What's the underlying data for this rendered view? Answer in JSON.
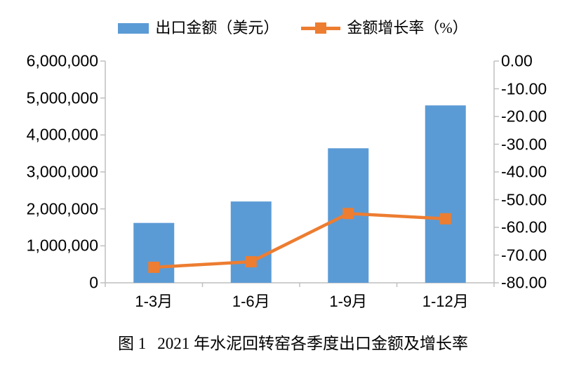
{
  "legend": {
    "bar_series_label": "出口金额（美元）",
    "line_series_label": "金额增长率（%）"
  },
  "caption": {
    "prefix": "图 1",
    "text": "2021 年水泥回转窑各季度出口金额及增长率"
  },
  "colors": {
    "bar": "#5B9BD5",
    "line": "#ED7D31",
    "axis": "#BFBFBF",
    "text": "#000000"
  },
  "chart_data": {
    "type": "bar",
    "title": "图 1  2021 年水泥回转窑各季度出口金额及增长率",
    "categories": [
      "1-3月",
      "1-6月",
      "1-9月",
      "1-12月"
    ],
    "series": [
      {
        "name": "出口金额（美元）",
        "type": "bar",
        "axis": "left",
        "color": "#5B9BD5",
        "values": [
          1620000,
          2200000,
          3640000,
          4800000
        ]
      },
      {
        "name": "金额增长率（%）",
        "type": "line",
        "axis": "right",
        "color": "#ED7D31",
        "values": [
          -74.4,
          -72.4,
          -55.0,
          -56.9
        ]
      }
    ],
    "left_axis": {
      "min": 0,
      "max": 6000000,
      "tick_labels": [
        "6,000,000",
        "5,000,000",
        "4,000,000",
        "3,000,000",
        "2,000,000",
        "1,000,000",
        "0"
      ]
    },
    "right_axis": {
      "min": -80,
      "max": 0,
      "tick_labels": [
        "0.00",
        "-10.00",
        "-20.00",
        "-30.00",
        "-40.00",
        "-50.00",
        "-60.00",
        "-70.00",
        "-80.00"
      ]
    },
    "grid": false,
    "legend_position": "top"
  }
}
